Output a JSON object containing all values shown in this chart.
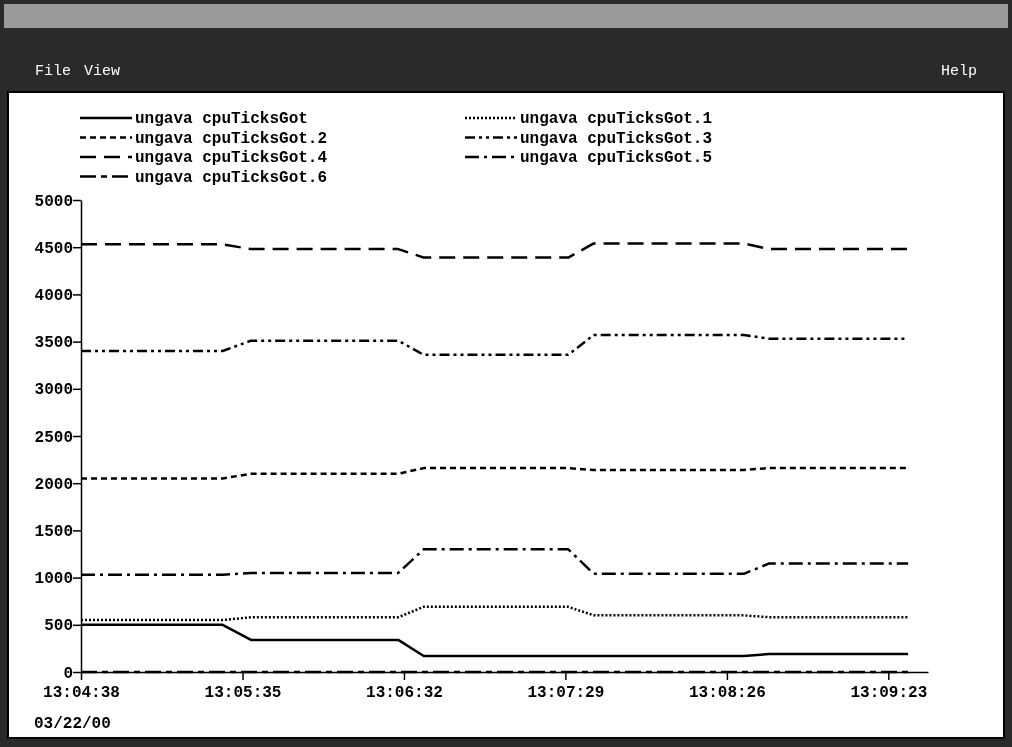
{
  "chart_data": {
    "type": "line",
    "annotations": [
      "File",
      "View",
      "Help",
      "03/22/00"
    ],
    "xlim": [
      13.07722,
      13.16028
    ],
    "xticks": [
      {
        "value": 13.07722,
        "label": "13:04:38"
      },
      {
        "value": 13.09306,
        "label": "13:05:35"
      },
      {
        "value": 13.10889,
        "label": "13:06:32"
      },
      {
        "value": 13.12472,
        "label": "13:07:29"
      },
      {
        "value": 13.14056,
        "label": "13:08:26"
      },
      {
        "value": 13.15639,
        "label": "13:09:23"
      }
    ],
    "ylim": [
      0,
      5000
    ],
    "yticks": [
      0,
      500,
      1000,
      1500,
      2000,
      2500,
      3000,
      3500,
      4000,
      4500,
      5000
    ],
    "x": [
      13.07722,
      13.09111,
      13.09389,
      13.10833,
      13.11083,
      13.125,
      13.1275,
      13.14222,
      13.14472,
      13.15833
    ],
    "grid": false,
    "legend": "top",
    "marker": "none",
    "series": [
      {
        "name": "ungava cpuTicksGot",
        "color": "#000000",
        "line_style": "solid",
        "values": [
          500,
          500,
          340,
          340,
          170,
          170,
          170,
          170,
          190,
          190
        ]
      },
      {
        "name": "ungava cpuTicksGot.1",
        "color": "#000000",
        "line_style": "dotted",
        "values": [
          550,
          550,
          580,
          580,
          690,
          690,
          600,
          600,
          580,
          580
        ]
      },
      {
        "name": "ungava cpuTicksGot.2",
        "color": "#000000",
        "line_style": "dashed",
        "values": [
          2050,
          2050,
          2100,
          2100,
          2160,
          2160,
          2140,
          2140,
          2160,
          2160
        ]
      },
      {
        "name": "ungava cpuTicksGot.3",
        "color": "#000000",
        "line_style": "dash-dot-dot",
        "values": [
          3400,
          3400,
          3510,
          3510,
          3360,
          3360,
          3570,
          3570,
          3530,
          3530
        ]
      },
      {
        "name": "ungava cpuTicksGot.4",
        "color": "#000000",
        "line_style": "long-dashed",
        "values": [
          4530,
          4530,
          4480,
          4480,
          4390,
          4390,
          4540,
          4540,
          4480,
          4480
        ]
      },
      {
        "name": "ungava cpuTicksGot.5",
        "color": "#000000",
        "line_style": "dash-dot",
        "values": [
          1030,
          1030,
          1050,
          1050,
          1300,
          1300,
          1040,
          1040,
          1150,
          1150
        ]
      },
      {
        "name": "ungava cpuTicksGot.6",
        "color": "#000000",
        "line_style": "long-dash-short",
        "values": [
          0,
          0,
          0,
          0,
          0,
          0,
          0,
          0,
          0,
          0
        ]
      }
    ]
  }
}
